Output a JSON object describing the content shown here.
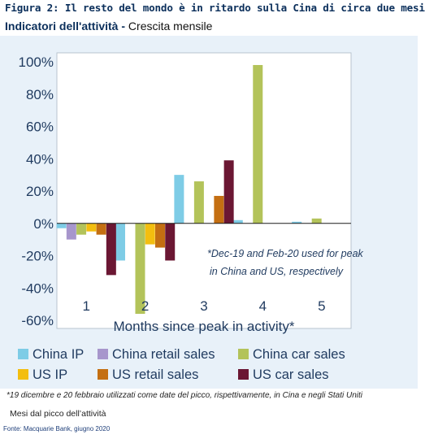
{
  "figure": {
    "title": "Figura 2: Il resto del mondo è in ritardo sulla Cina di circa due mesi",
    "subtitle_bold": "Indicatori dell'attività -",
    "subtitle_rest": "Crescita mensile",
    "footnote": "*19 dicembre e 20 febbraio utilizzati come date del picco, rispettivamente, in Cina e negli Stati Uniti",
    "xlabel_it": "Mesi dal picco dell’attività",
    "source": "Fonte: Macquarie Bank, giugno 2020"
  },
  "chart_data": {
    "type": "bar",
    "title": "",
    "categories": [
      "1",
      "2",
      "3",
      "4",
      "5"
    ],
    "xlabel": "Months since peak in activity*",
    "ylabel": "",
    "ylim": [
      -60,
      100
    ],
    "yticks": [
      -60,
      -40,
      -20,
      0,
      20,
      40,
      60,
      80,
      100
    ],
    "ytick_labels": [
      "-60%",
      "-40%",
      "-20%",
      "0%",
      "20%",
      "40%",
      "60%",
      "80%",
      "100%"
    ],
    "grid": false,
    "legend_position": "bottom",
    "annotation": [
      "*Dec-19 and Feb-20 used for peak",
      "in China and US, respectively"
    ],
    "series": [
      {
        "name": "China IP",
        "color": "#7ecce6",
        "values": [
          -3,
          -23,
          30,
          2,
          1
        ]
      },
      {
        "name": "China retail sales",
        "color": "#a796cc",
        "values": [
          -10,
          null,
          null,
          null,
          null
        ]
      },
      {
        "name": "China car sales",
        "color": "#b3c35a",
        "values": [
          -7,
          -56,
          26,
          98,
          3
        ]
      },
      {
        "name": "US IP",
        "color": "#f3be0f",
        "values": [
          -5,
          -13,
          null,
          null,
          null
        ]
      },
      {
        "name": "US retail sales",
        "color": "#c46f12",
        "values": [
          -7,
          -15,
          17,
          null,
          null
        ]
      },
      {
        "name": "US car sales",
        "color": "#6b1733",
        "values": [
          -32,
          -23,
          39,
          null,
          null
        ]
      }
    ]
  }
}
